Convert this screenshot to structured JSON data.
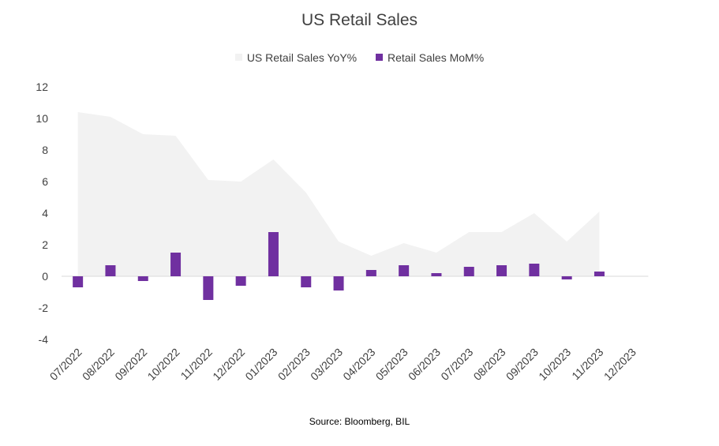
{
  "chart_data": {
    "type": "bar",
    "title": "US Retail Sales",
    "categories": [
      "07/2022",
      "08/2022",
      "09/2022",
      "10/2022",
      "11/2022",
      "12/2022",
      "01/2023",
      "02/2023",
      "03/2023",
      "04/2023",
      "05/2023",
      "06/2023",
      "07/2023",
      "08/2023",
      "09/2023",
      "10/2023",
      "11/2023",
      "12/2023"
    ],
    "series": [
      {
        "name": "US Retail Sales YoY%",
        "type": "area",
        "color": "#f2f2f2",
        "values": [
          10.4,
          10.1,
          9.0,
          8.9,
          6.1,
          6.0,
          7.4,
          5.3,
          2.2,
          1.3,
          2.1,
          1.5,
          2.8,
          2.8,
          4.0,
          2.2,
          4.1,
          null
        ]
      },
      {
        "name": "Retail Sales MoM%",
        "type": "bar",
        "color": "#7030a0",
        "values": [
          -0.7,
          0.7,
          -0.3,
          1.5,
          -1.5,
          -0.6,
          2.8,
          -0.7,
          -0.9,
          0.4,
          0.7,
          0.2,
          0.6,
          0.7,
          0.8,
          -0.2,
          0.3,
          null
        ]
      }
    ],
    "y_ticks": [
      "12",
      "10",
      "8",
      "6",
      "4",
      "2",
      "0",
      "-2",
      "-4"
    ],
    "ylim": [
      -4,
      12
    ],
    "legend_position": "top-center",
    "grid": false
  },
  "source_note": "Source: Bloomberg, BIL"
}
